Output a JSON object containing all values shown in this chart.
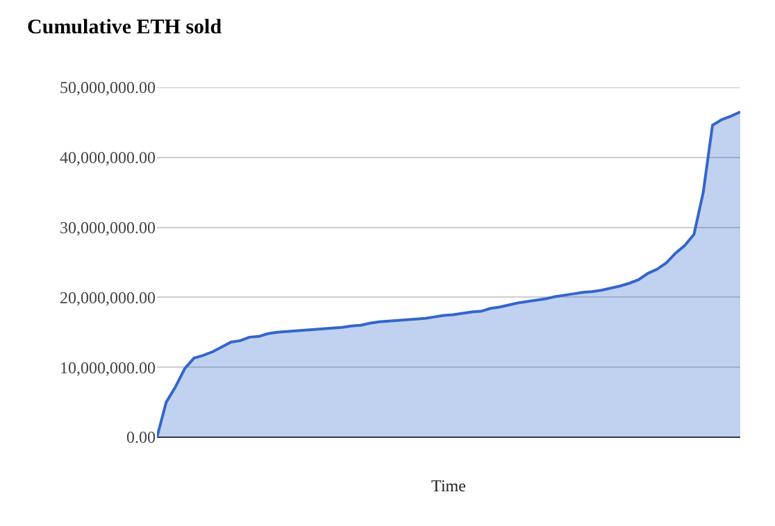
{
  "chart_data": {
    "type": "area",
    "title": "Cumulative ETH sold",
    "xlabel": "Time",
    "categories": [
      null,
      null,
      null,
      null,
      null,
      null,
      null,
      null,
      null,
      null,
      null,
      null,
      null,
      null,
      null,
      null,
      null,
      null,
      null,
      null,
      null,
      null,
      null,
      null,
      null,
      null,
      null,
      null,
      null,
      null,
      null,
      null,
      null,
      null,
      null,
      null,
      null,
      null,
      null,
      null,
      null,
      null,
      null,
      null,
      null,
      null,
      null,
      null,
      null,
      null,
      null,
      null,
      null,
      null,
      null,
      null,
      null,
      null,
      null,
      null,
      null,
      null,
      null,
      null
    ],
    "series": [
      {
        "color": "#3366cc",
        "values": [
          0,
          5000000,
          7200000,
          9800000,
          11300000,
          11700000,
          12200000,
          12900000,
          13600000,
          13800000,
          14300000,
          14400000,
          14800000,
          15000000,
          15100000,
          15200000,
          15300000,
          15400000,
          15500000,
          15600000,
          15700000,
          15900000,
          16000000,
          16300000,
          16500000,
          16600000,
          16700000,
          16800000,
          16900000,
          17000000,
          17200000,
          17400000,
          17500000,
          17700000,
          17900000,
          18000000,
          18400000,
          18600000,
          18900000,
          19200000,
          19400000,
          19600000,
          19800000,
          20100000,
          20300000,
          20500000,
          20700000,
          20800000,
          21000000,
          21300000,
          21600000,
          22000000,
          22500000,
          23400000,
          24000000,
          24900000,
          26300000,
          27400000,
          29000000,
          35000000,
          44600000,
          45400000,
          45900000,
          46500000
        ]
      }
    ],
    "ylim": [
      0,
      50000000
    ],
    "yticks": [
      {
        "value": 0,
        "label": "0.00"
      },
      {
        "value": 10000000,
        "label": "10,000,000.00"
      },
      {
        "value": 20000000,
        "label": "20,000,000.00"
      },
      {
        "value": 30000000,
        "label": "30,000,000.00"
      },
      {
        "value": 40000000,
        "label": "40,000,000.00"
      },
      {
        "value": 50000000,
        "label": "50,000,000.00"
      }
    ],
    "grid": "y",
    "tick_labels": "y"
  }
}
